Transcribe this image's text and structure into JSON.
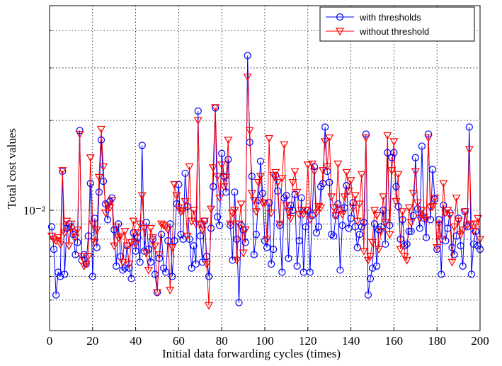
{
  "chart_data": {
    "type": "line",
    "xlabel": "Initial data forwarding cycles (times)",
    "ylabel": "Total cost values",
    "xlim": [
      0,
      200
    ],
    "xticks": [
      0,
      20,
      40,
      60,
      80,
      100,
      120,
      140,
      160,
      180,
      200
    ],
    "ylim": [
      0.00395,
      0.0485
    ],
    "log_y": true,
    "yticks": [
      {
        "value": 0.01,
        "label": "10⁻²"
      }
    ],
    "y_minor_ticks": [
      0.005,
      0.006,
      0.007,
      0.008,
      0.009,
      0.02,
      0.03,
      0.04
    ],
    "grid": true,
    "legend": "upper right",
    "x": [
      1,
      2,
      3,
      4,
      5,
      6,
      7,
      8,
      9,
      10,
      11,
      12,
      13,
      14,
      15,
      16,
      17,
      18,
      19,
      20,
      21,
      22,
      23,
      24,
      25,
      26,
      27,
      28,
      29,
      30,
      31,
      32,
      33,
      34,
      35,
      36,
      37,
      38,
      39,
      40,
      41,
      42,
      43,
      44,
      45,
      46,
      47,
      48,
      49,
      50,
      51,
      52,
      53,
      54,
      55,
      56,
      57,
      58,
      59,
      60,
      61,
      62,
      63,
      64,
      65,
      66,
      67,
      68,
      69,
      70,
      71,
      72,
      73,
      74,
      75,
      76,
      77,
      78,
      79,
      80,
      81,
      82,
      83,
      84,
      85,
      86,
      87,
      88,
      89,
      90,
      91,
      92,
      93,
      94,
      95,
      96,
      97,
      98,
      99,
      100,
      101,
      102,
      103,
      104,
      105,
      106,
      107,
      108,
      109,
      110,
      111,
      112,
      113,
      114,
      115,
      116,
      117,
      118,
      119,
      120,
      121,
      122,
      123,
      124,
      125,
      126,
      127,
      128,
      129,
      130,
      131,
      132,
      133,
      134,
      135,
      136,
      137,
      138,
      139,
      140,
      141,
      142,
      143,
      144,
      145,
      146,
      147,
      148,
      149,
      150,
      151,
      152,
      153,
      154,
      155,
      156,
      157,
      158,
      159,
      160,
      161,
      162,
      163,
      164,
      165,
      166,
      167,
      168,
      169,
      170,
      171,
      172,
      173,
      174,
      175,
      176,
      177,
      178,
      179,
      180,
      181,
      182,
      183,
      184,
      185,
      186,
      187,
      188,
      189,
      190,
      191,
      192,
      193,
      194,
      195,
      196,
      197,
      198,
      199,
      200
    ],
    "series": [
      {
        "name": "with thresholds",
        "color": "#0000ff",
        "marker": "circle",
        "values": [
          0.0088,
          0.0074,
          0.0052,
          0.0062,
          0.006,
          0.0135,
          0.0061,
          0.0087,
          0.009,
          0.0088,
          0.0083,
          0.0071,
          0.0078,
          0.0185,
          0.0068,
          0.0071,
          0.0066,
          0.0082,
          0.0123,
          0.006,
          0.0094,
          0.0075,
          0.0115,
          0.0172,
          0.0125,
          0.0105,
          0.0093,
          0.0107,
          0.011,
          0.0086,
          0.0065,
          0.009,
          0.007,
          0.0063,
          0.0064,
          0.0076,
          0.0064,
          0.0059,
          0.0084,
          0.0073,
          0.0081,
          0.0067,
          0.0165,
          0.0073,
          0.0091,
          0.0074,
          0.0067,
          0.008,
          0.0061,
          0.0053,
          0.0069,
          0.0083,
          0.0064,
          0.0062,
          0.0079,
          0.009,
          0.006,
          0.0079,
          0.0105,
          0.0122,
          0.0083,
          0.008,
          0.0133,
          0.0103,
          0.008,
          0.0064,
          0.0076,
          0.0066,
          0.0215,
          0.0082,
          0.0067,
          0.0092,
          0.007,
          0.006,
          0.0087,
          0.012,
          0.022,
          0.0095,
          0.0089,
          0.0155,
          0.013,
          0.0115,
          0.0148,
          0.0089,
          0.0068,
          0.0115,
          0.008,
          0.0049,
          0.0089,
          0.0086,
          0.0078,
          0.033,
          0.0169,
          0.013,
          0.0071,
          0.0083,
          0.0108,
          0.0146,
          0.0114,
          0.0079,
          0.0075,
          0.0106,
          0.0066,
          0.0074,
          0.0131,
          0.0116,
          0.0089,
          0.0062,
          0.011,
          0.0112,
          0.0069,
          0.0104,
          0.01,
          0.0113,
          0.0065,
          0.0079,
          0.011,
          0.0062,
          0.0088,
          0.01,
          0.0062,
          0.0096,
          0.014,
          0.0084,
          0.0088,
          0.012,
          0.0123,
          0.019,
          0.0135,
          0.0124,
          0.0083,
          0.0082,
          0.0096,
          0.0105,
          0.0063,
          0.0089,
          0.0102,
          0.0121,
          0.0087,
          0.0094,
          0.0106,
          0.0088,
          0.0075,
          0.0083,
          0.0088,
          0.0091,
          0.018,
          0.0052,
          0.0059,
          0.0064,
          0.009,
          0.0065,
          0.0086,
          0.0088,
          0.01,
          0.0077,
          0.0156,
          0.0089,
          0.015,
          0.0156,
          0.012,
          0.0103,
          0.008,
          0.0093,
          0.0076,
          0.0077,
          0.0085,
          0.0085,
          0.0096,
          0.015,
          0.0101,
          0.0087,
          0.0164,
          0.0094,
          0.0081,
          0.018,
          0.0093,
          0.0137,
          0.0109,
          0.0074,
          0.0093,
          0.0061,
          0.0104,
          0.0079,
          0.0087,
          0.0098,
          0.0075,
          0.0071,
          0.0082,
          0.0094,
          0.0076,
          0.0065,
          0.0099,
          0.0088,
          0.019,
          0.0061,
          0.0077,
          0.0085,
          0.0076,
          0.0074
        ]
      },
      {
        "name": "without threshold",
        "color": "#ff0000",
        "marker": "triangle-down",
        "values": [
          0.0082,
          0.008,
          0.0079,
          0.0081,
          0.0077,
          0.0136,
          0.0084,
          0.0092,
          0.0076,
          0.009,
          0.0084,
          0.0081,
          0.0086,
          0.018,
          0.007,
          0.0065,
          0.0066,
          0.007,
          0.015,
          0.009,
          0.0078,
          0.0086,
          0.0129,
          0.0187,
          0.014,
          0.0098,
          0.0104,
          0.0102,
          0.0108,
          0.0076,
          0.0088,
          0.0081,
          0.0082,
          0.0067,
          0.0085,
          0.0076,
          0.0066,
          0.0078,
          0.0092,
          0.0077,
          0.0084,
          0.009,
          0.0112,
          0.0087,
          0.0072,
          0.0063,
          0.0087,
          0.0081,
          0.0076,
          0.0053,
          0.0071,
          0.009,
          0.0089,
          0.0088,
          0.0086,
          0.0054,
          0.0075,
          0.0122,
          0.0112,
          0.0102,
          0.0099,
          0.01,
          0.0107,
          0.0082,
          0.014,
          0.0092,
          0.01,
          0.009,
          0.02,
          0.009,
          0.0086,
          0.0092,
          0.0066,
          0.0048,
          0.0101,
          0.0139,
          0.0221,
          0.013,
          0.011,
          0.0142,
          0.012,
          0.0129,
          0.0172,
          0.009,
          0.0098,
          0.01,
          0.0068,
          0.009,
          0.0105,
          0.0072,
          0.0086,
          0.028,
          0.0185,
          0.0114,
          0.0108,
          0.0099,
          0.0124,
          0.013,
          0.0106,
          0.0106,
          0.008,
          0.0174,
          0.0098,
          0.0131,
          0.0134,
          0.0124,
          0.009,
          0.0128,
          0.0166,
          0.0104,
          0.0099,
          0.0094,
          0.0124,
          0.0135,
          0.0115,
          0.0097,
          0.01,
          0.0097,
          0.01,
          0.0142,
          0.0093,
          0.0143,
          0.0135,
          0.0098,
          0.0103,
          0.0102,
          0.0136,
          0.017,
          0.014,
          0.0175,
          0.0111,
          0.0102,
          0.0096,
          0.0143,
          0.01,
          0.0097,
          0.0111,
          0.0134,
          0.0116,
          0.0126,
          0.0102,
          0.0112,
          0.0092,
          0.0105,
          0.0132,
          0.0073,
          0.0175,
          0.0068,
          0.007,
          0.0078,
          0.01,
          0.0096,
          0.0074,
          0.0085,
          0.0111,
          0.0091,
          0.0178,
          0.0083,
          0.0136,
          0.017,
          0.0107,
          0.0132,
          0.0074,
          0.0099,
          0.007,
          0.0068,
          0.0102,
          0.0091,
          0.0114,
          0.0135,
          0.0106,
          0.0094,
          0.01,
          0.0095,
          0.0093,
          0.0175,
          0.0102,
          0.0103,
          0.011,
          0.0075,
          0.009,
          0.008,
          0.0123,
          0.0098,
          0.01,
          0.0096,
          0.0067,
          0.0088,
          0.011,
          0.0092,
          0.0083,
          0.0086,
          0.0099,
          0.0089,
          0.016,
          0.009,
          0.0085,
          0.009,
          0.0094,
          0.008
        ]
      }
    ]
  }
}
